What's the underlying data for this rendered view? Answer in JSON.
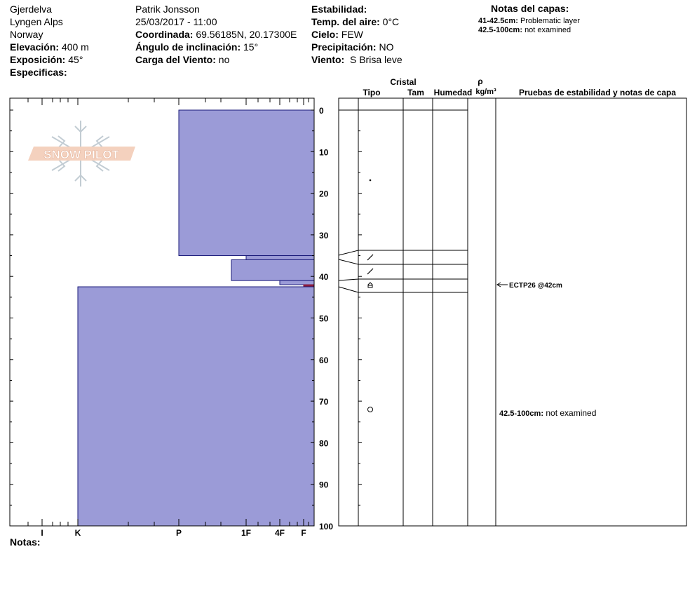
{
  "header": {
    "col1": {
      "location": "Gjerdelva",
      "range": "Lyngen Alps",
      "country": "Norway",
      "elevation_label": "Elevación:",
      "elevation_value": "400 m",
      "aspect_label": "Exposición:",
      "aspect_value": "45°",
      "specifics_label": "Especificas:"
    },
    "col2": {
      "observer": "Patrik Jonsson",
      "datetime": "25/03/2017 - 11:00",
      "coord_label": "Coordinada:",
      "coord_value": "69.56185N, 20.17300E",
      "slope_label": "Ángulo de inclinación:",
      "slope_value": "15°",
      "windload_label": "Carga del Viento:",
      "windload_value": "no"
    },
    "col3": {
      "stability_label": "Estabilidad:",
      "airtemp_label": "Temp. del aire:",
      "airtemp_value": "0°C",
      "sky_label": "Cielo:",
      "sky_value": "FEW",
      "precip_label": "Precipitación:",
      "precip_value": "NO",
      "wind_label": "Viento:",
      "wind_value": "S Brisa leve"
    },
    "layer_notes": {
      "title": "Notas del capas:",
      "lines": [
        {
          "range": "41-42.5cm:",
          "text": "Problematic layer"
        },
        {
          "range": "42.5-100cm:",
          "text": "not examined"
        }
      ]
    }
  },
  "logo": {
    "text": "SNOW PILOT"
  },
  "columns": {
    "crystal": "Cristal",
    "type": "Tipo",
    "size": "Tam",
    "moisture": "Humedad",
    "rho": "ρ",
    "density_unit": "kg/m³",
    "tests": "Pruebas de estabilidad y notas de capa"
  },
  "hardness_axis": [
    "I",
    "K",
    "P",
    "1F",
    "4F",
    "F"
  ],
  "depth_ticks": [
    "0",
    "10",
    "20",
    "30",
    "40",
    "50",
    "60",
    "70",
    "80",
    "90",
    "100"
  ],
  "chart_data": {
    "type": "table",
    "depth_range_cm": [
      0,
      100
    ],
    "hardness_profile": [
      {
        "top_cm": 0,
        "bottom_cm": 35,
        "hardness": "P"
      },
      {
        "top_cm": 35,
        "bottom_cm": 36,
        "hardness": "1F"
      },
      {
        "top_cm": 36,
        "bottom_cm": 41,
        "hardness": "1F-"
      },
      {
        "top_cm": 41,
        "bottom_cm": 42,
        "hardness": "4F"
      },
      {
        "top_cm": 42,
        "bottom_cm": 42.5,
        "hardness": "F",
        "color": "#8b1a3c"
      },
      {
        "top_cm": 42.5,
        "bottom_cm": 100,
        "hardness": "K"
      }
    ],
    "crystals": [
      {
        "depth_cm": 17,
        "symbol": "dot"
      },
      {
        "depth_cm": 35.5,
        "symbol": "slash"
      },
      {
        "depth_cm": 39,
        "symbol": "slash"
      },
      {
        "depth_cm": 42,
        "symbol": "facet"
      },
      {
        "depth_cm": 72,
        "symbol": "circle"
      }
    ]
  },
  "test_result": "ECTP26 @42cm",
  "layer_note_in_plot": {
    "range": "42.5-100cm:",
    "text": "not examined"
  },
  "footer": {
    "notes_label": "Notas:"
  },
  "colors": {
    "layer_fill": "#9b9bd7",
    "layer_stroke": "#1a1a7a",
    "weak_layer": "#8b1a3c"
  }
}
